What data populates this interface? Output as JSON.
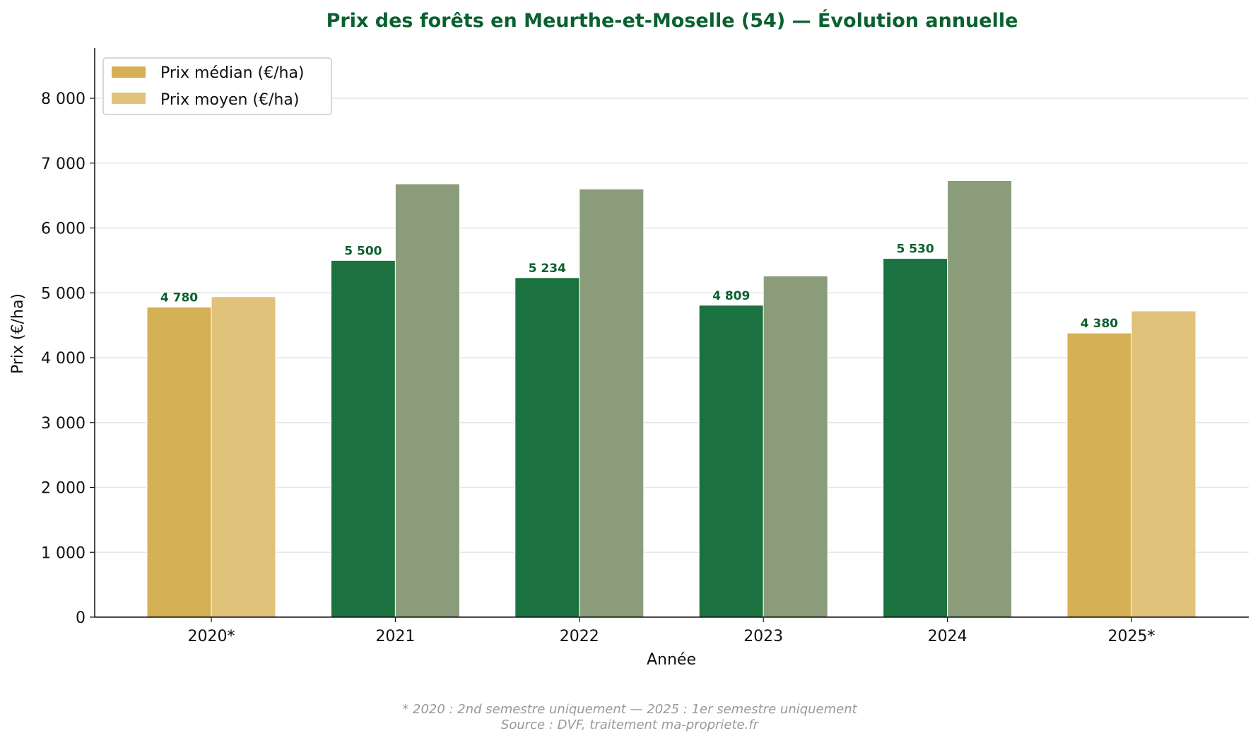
{
  "chart_data": {
    "type": "bar",
    "title": "Prix des forêts en Meurthe-et-Moselle (54) — Évolution annuelle",
    "xlabel": "Année",
    "ylabel": "Prix (€/ha)",
    "ylim": [
      0,
      8750
    ],
    "yticks": [
      0,
      1000,
      2000,
      3000,
      4000,
      5000,
      6000,
      7000,
      8000
    ],
    "ytick_labels": [
      "0",
      "1 000",
      "2 000",
      "3 000",
      "4 000",
      "5 000",
      "6 000",
      "7 000",
      "8 000"
    ],
    "grid": "horizontal",
    "legend_position": "top-left",
    "categories": [
      "2020*",
      "2021",
      "2022",
      "2023",
      "2024",
      "2025*"
    ],
    "partial_years": [
      "2020*",
      "2025*"
    ],
    "series": [
      {
        "name": "Prix médian (€/ha)",
        "values": [
          4780,
          5500,
          5234,
          4809,
          5530,
          4380
        ],
        "data_labels": [
          "4 780",
          "5 500",
          "5 234",
          "4 809",
          "5 530",
          "4 380"
        ]
      },
      {
        "name": "Prix moyen (€/ha)",
        "values": [
          4940,
          6680,
          6600,
          5260,
          6730,
          4720
        ]
      }
    ],
    "colors": {
      "median_full": "#1b7240",
      "mean_full": "#8b9c7a",
      "median_partial": "#d6b055",
      "mean_partial": "#e0c27b",
      "title": "#0a6130",
      "data_label": "#0a6130"
    },
    "footnote": "* 2020 : 2nd semestre uniquement — 2025 : 1er semestre uniquement",
    "source": "Source : DVF, traitement ma-propriete.fr"
  }
}
